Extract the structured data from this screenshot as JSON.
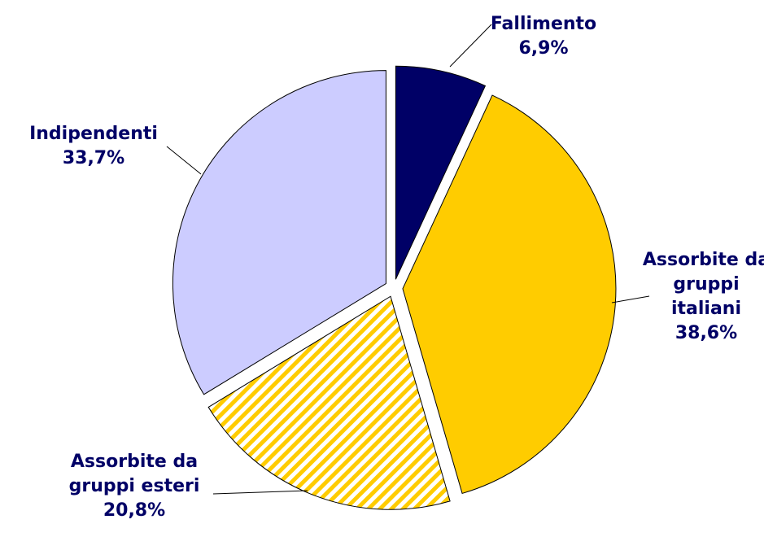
{
  "chart_data": {
    "type": "pie",
    "categories": [
      "Fallimento",
      "Assorbite da gruppi italiani",
      "Assorbite da gruppi esteri",
      "Indipendenti"
    ],
    "values": [
      6.9,
      38.6,
      20.8,
      33.7
    ],
    "value_labels": [
      "6,9%",
      "38,6%",
      "20,8%",
      "33,7%"
    ],
    "colors": [
      "#000066",
      "#ffcc00",
      "#ffcc00",
      "#ccccff"
    ],
    "hatched": [
      false,
      false,
      true,
      false
    ],
    "exploded": true
  }
}
